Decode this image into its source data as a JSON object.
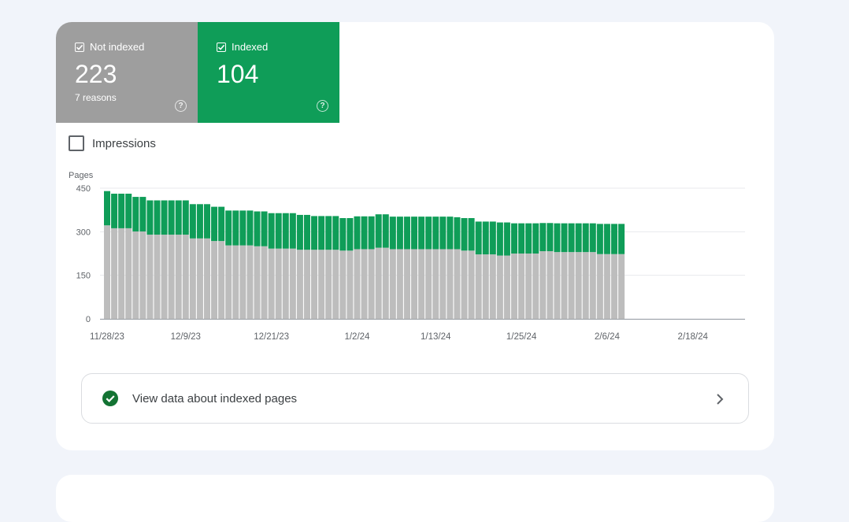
{
  "tiles": {
    "not_indexed": {
      "label": "Not indexed",
      "value": "223",
      "sub": "7 reasons",
      "checked": true
    },
    "indexed": {
      "label": "Indexed",
      "value": "104",
      "checked": true
    }
  },
  "impressions": {
    "label": "Impressions",
    "checked": false
  },
  "link": {
    "label": "View data about indexed pages"
  },
  "colors": {
    "not_indexed": "#bdbdbd",
    "indexed": "#0f9d58",
    "tile_grey": "#9e9e9e"
  },
  "chart_data": {
    "type": "bar",
    "stacked": true,
    "ylabel": "Pages",
    "ylim": [
      0,
      450
    ],
    "yticks": [
      "0",
      "150",
      "300",
      "450"
    ],
    "xtick_labels": [
      "11/28/23",
      "12/9/23",
      "12/21/23",
      "1/2/24",
      "1/13/24",
      "1/25/24",
      "2/6/24",
      "2/18/24"
    ],
    "xtick_bar_index": [
      0,
      11,
      23,
      35,
      46,
      58,
      70,
      82
    ],
    "grid": true,
    "series": [
      {
        "name": "Not indexed",
        "values": [
          322,
          312,
          312,
          312,
          301,
          301,
          290,
          290,
          290,
          290,
          290,
          290,
          277,
          277,
          277,
          268,
          268,
          253,
          253,
          253,
          253,
          250,
          250,
          242,
          242,
          242,
          242,
          238,
          238,
          238,
          238,
          238,
          238,
          235,
          235,
          240,
          240,
          240,
          245,
          245,
          240,
          240,
          240,
          240,
          240,
          240,
          240,
          240,
          240,
          240,
          235,
          235,
          222,
          222,
          222,
          218,
          218,
          225,
          225,
          225,
          225,
          233,
          233,
          230,
          230,
          230,
          230,
          230,
          230,
          223,
          223,
          223,
          223
        ]
      },
      {
        "name": "Indexed",
        "values": [
          118,
          119,
          119,
          119,
          119,
          119,
          118,
          118,
          118,
          118,
          118,
          118,
          118,
          118,
          118,
          118,
          118,
          120,
          120,
          120,
          120,
          120,
          120,
          122,
          122,
          122,
          122,
          120,
          120,
          116,
          116,
          116,
          116,
          112,
          112,
          113,
          113,
          113,
          115,
          115,
          112,
          112,
          112,
          112,
          112,
          112,
          112,
          112,
          112,
          110,
          112,
          112,
          113,
          113,
          113,
          114,
          114,
          104,
          104,
          104,
          104,
          97,
          97,
          99,
          99,
          99,
          99,
          99,
          99,
          104,
          104,
          104,
          104
        ]
      }
    ]
  }
}
